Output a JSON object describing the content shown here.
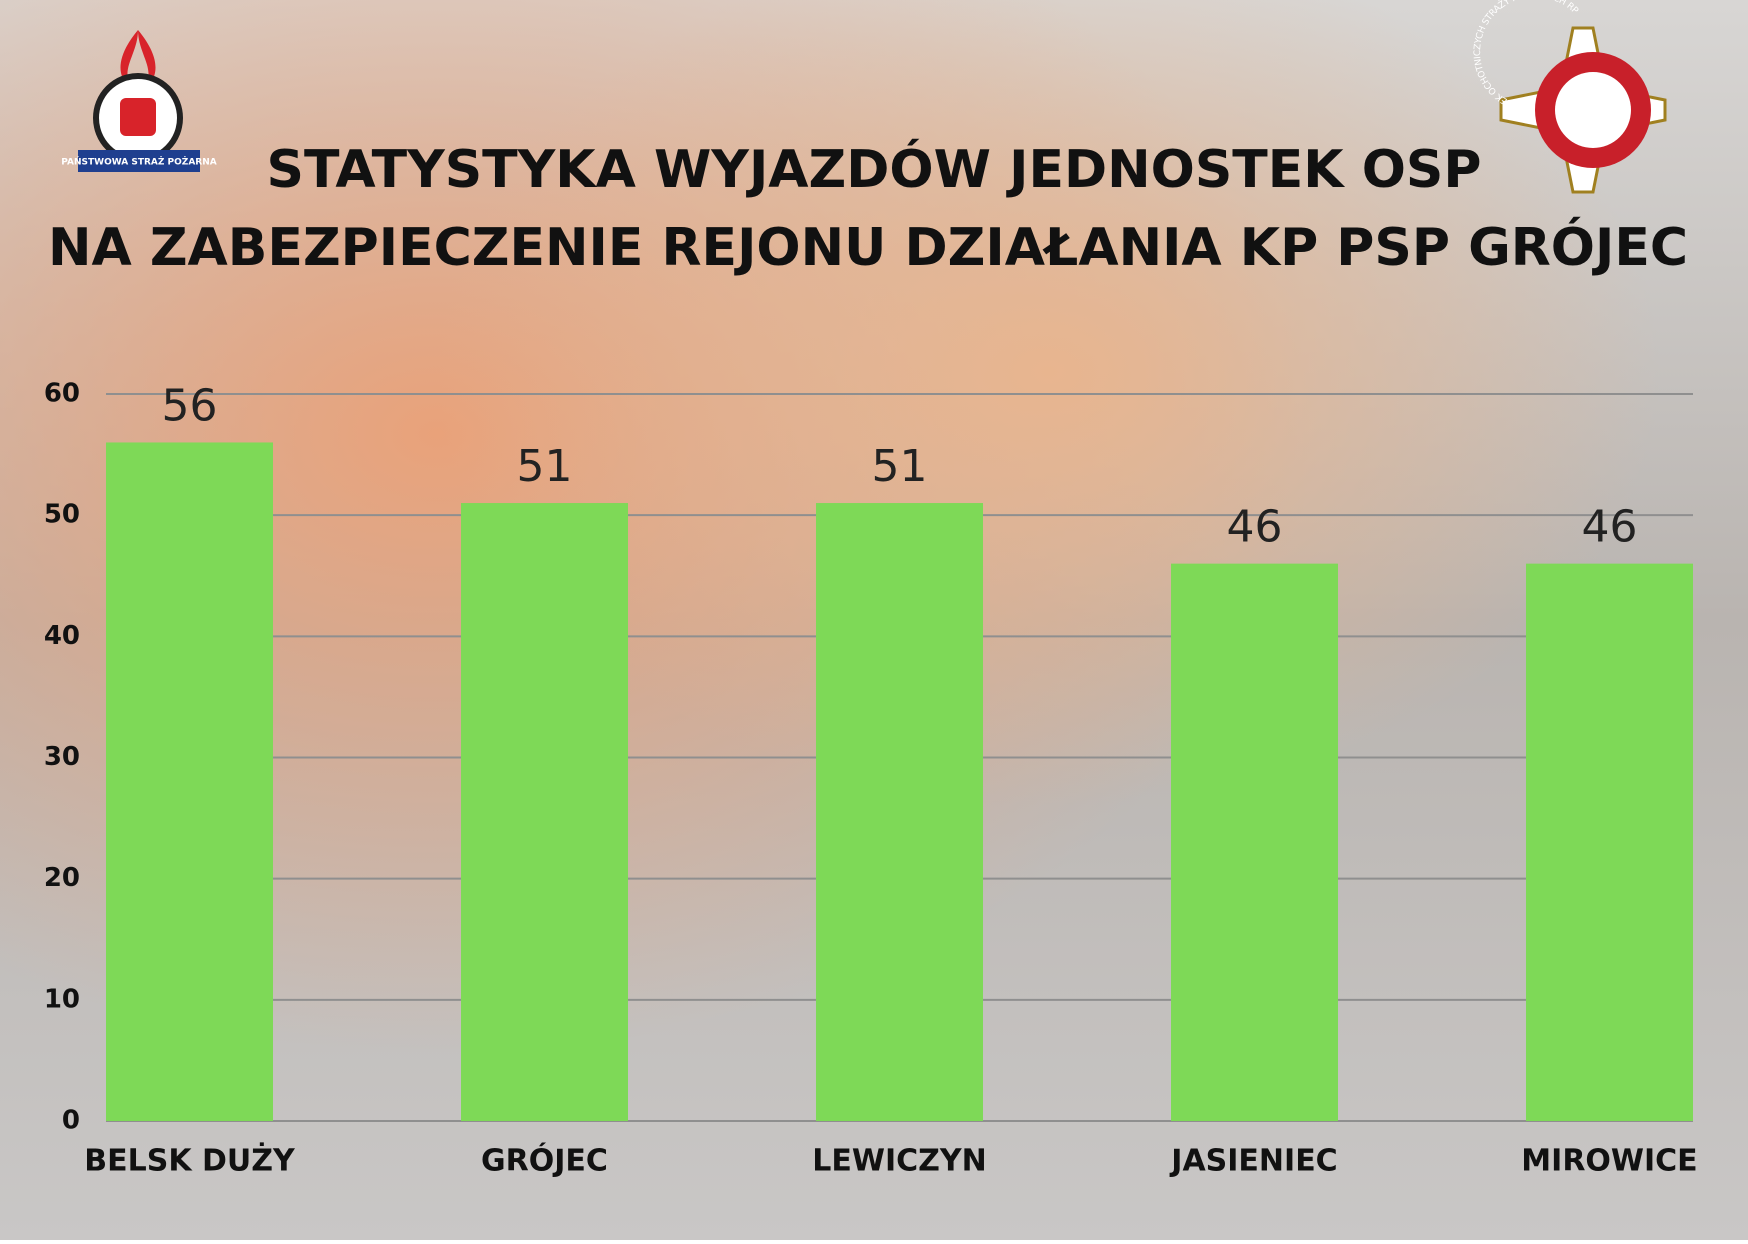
{
  "chart_data": {
    "type": "bar",
    "title": [
      "STATYSTYKA WYJAZDÓW JEDNOSTEK OSP",
      "NA ZABEZPIECZENIE REJONU DZIAŁANIA KP PSP GRÓJEC"
    ],
    "categories": [
      "BELSK DUŻY",
      "GRÓJEC",
      "LEWICZYN",
      "JASIENIEC",
      "MIROWICE"
    ],
    "values": [
      56,
      51,
      51,
      46,
      46
    ],
    "color": "#7ed957",
    "ylim": [
      0,
      60
    ],
    "yticks": [
      0,
      10,
      20,
      30,
      40,
      50,
      60
    ],
    "grid": true
  },
  "logo_texts": [
    "PAŃSTWOWA STRAŻ POŻARNA",
    "ZWIĄZEK OCHOTNICZYCH STRAŻY POŻARNYCH RP"
  ]
}
